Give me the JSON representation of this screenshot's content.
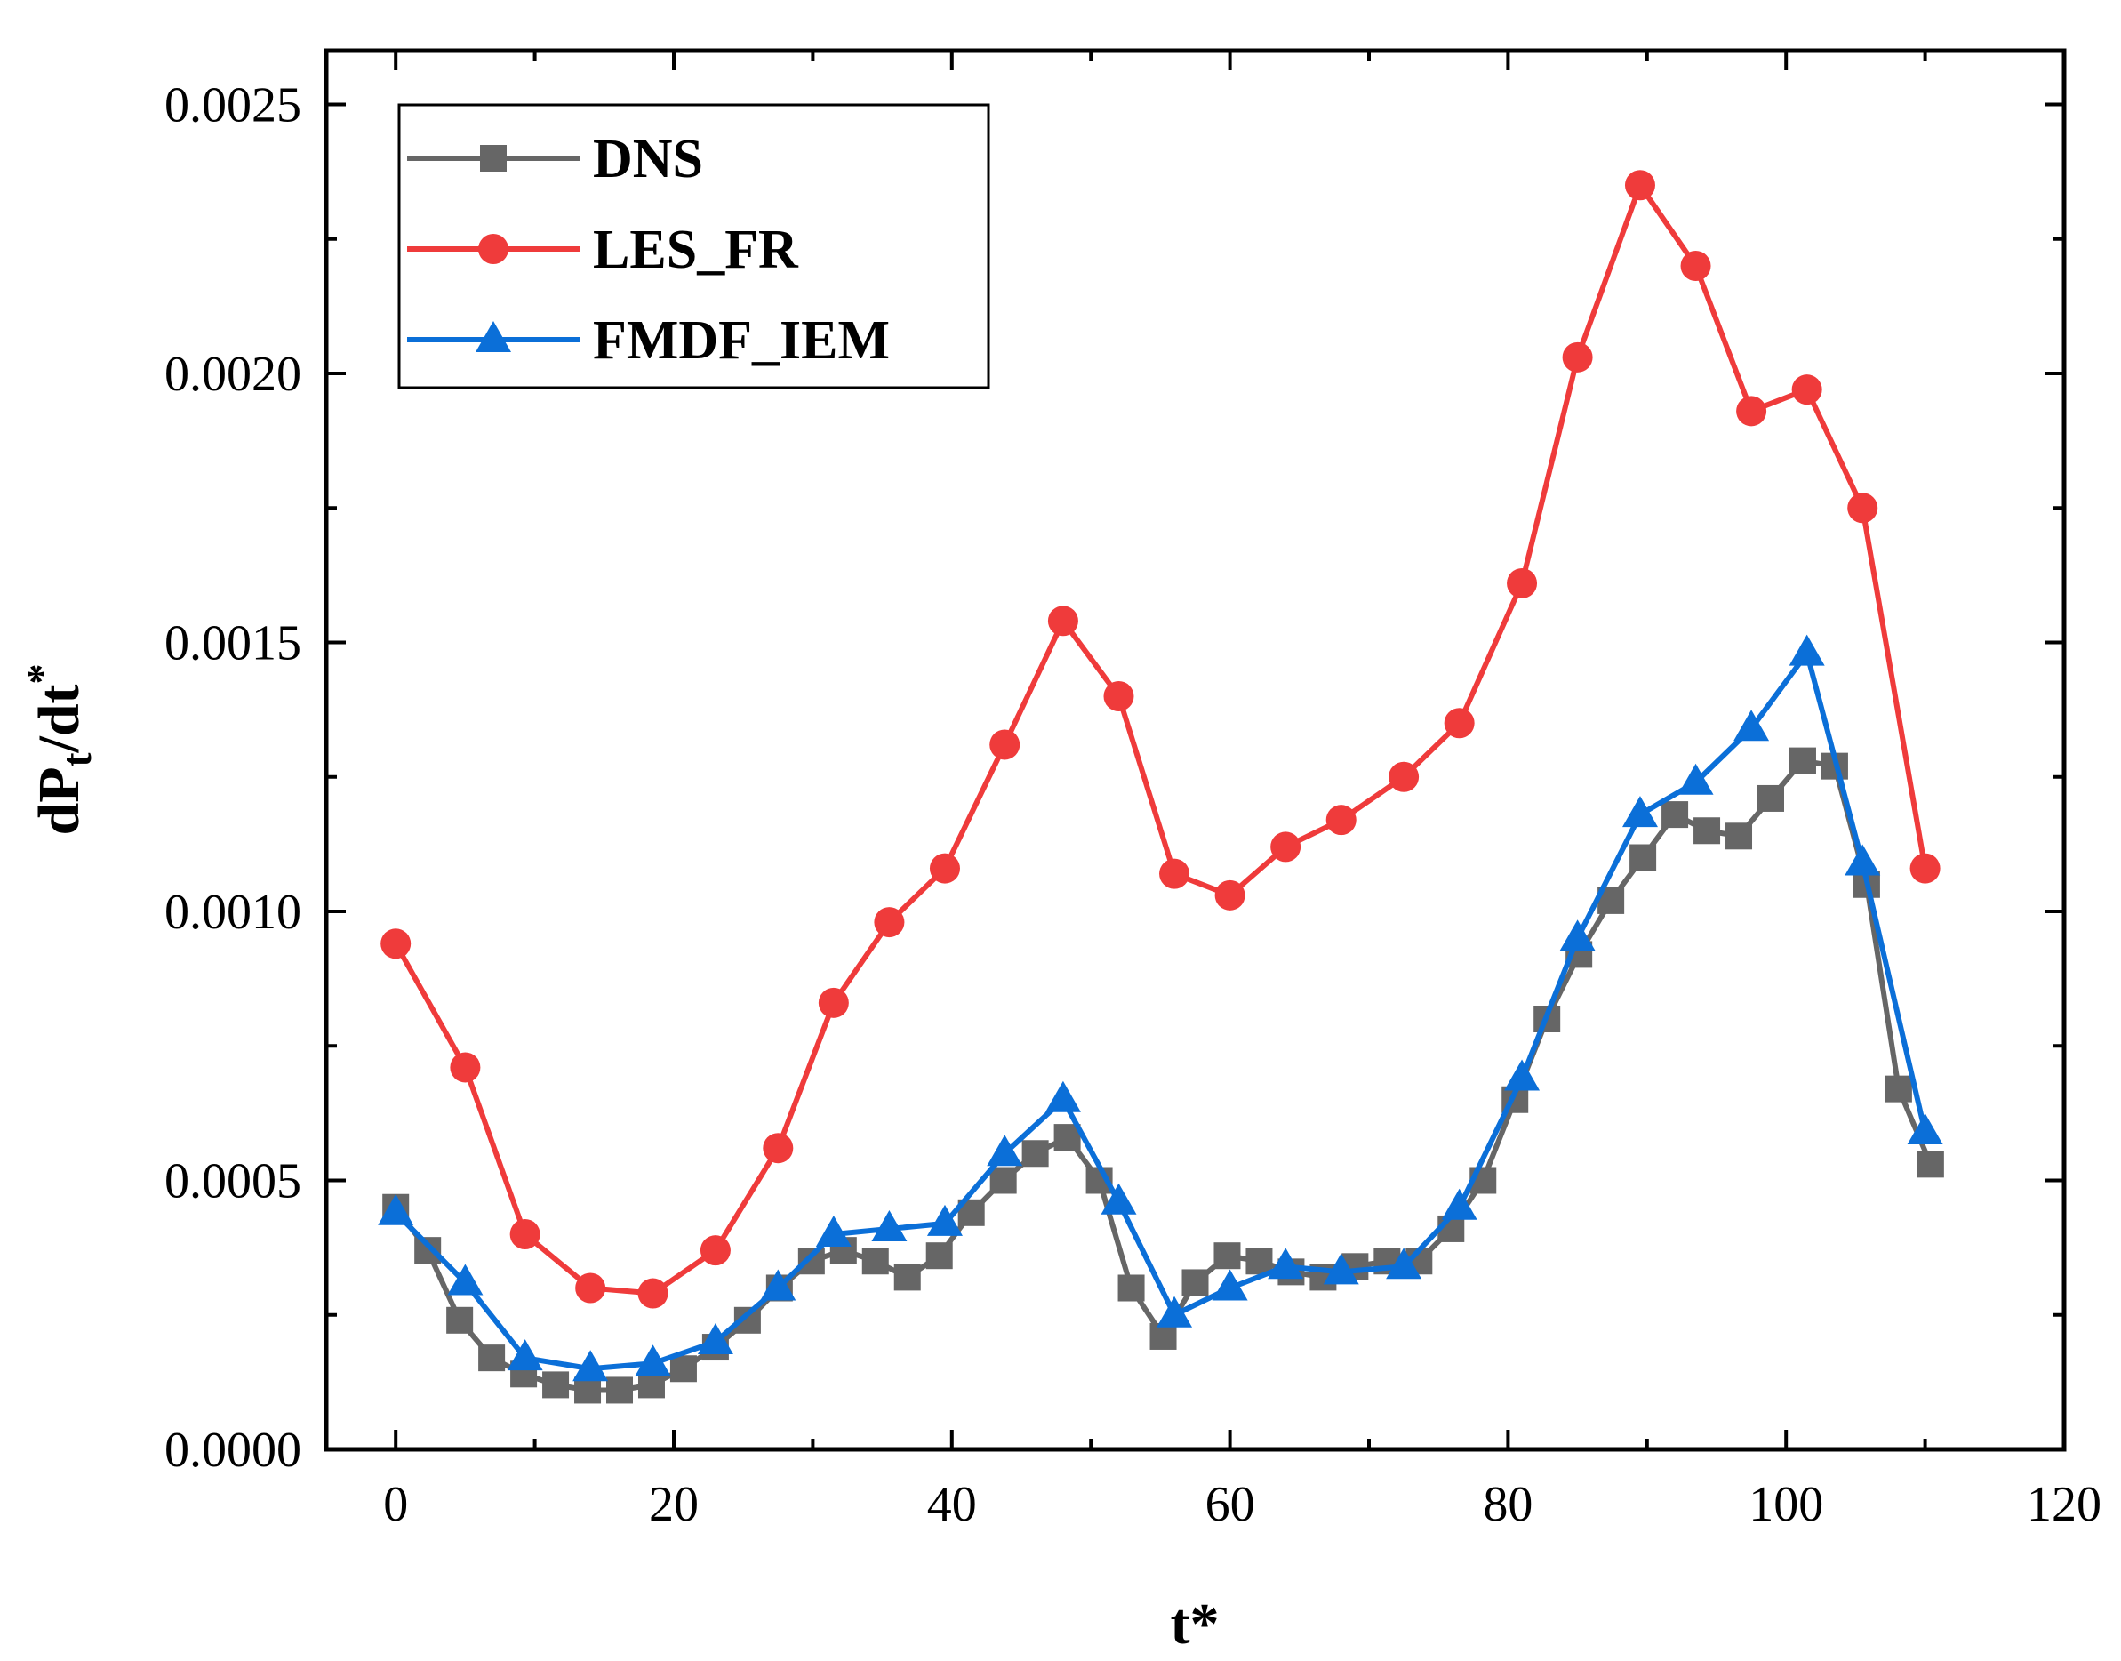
{
  "chart_data": {
    "type": "line",
    "title": "",
    "xlabel": "t*",
    "ylabel": {
      "main": "dP",
      "sub": "t",
      "mid": "/dt",
      "sup": "*"
    },
    "xlim": [
      -5,
      120
    ],
    "ylim": [
      0,
      0.0026
    ],
    "x_ticks": [
      0,
      20,
      40,
      60,
      80,
      100,
      120
    ],
    "x_tick_labels": [
      "0",
      "20",
      "40",
      "60",
      "80",
      "100",
      "120"
    ],
    "y_ticks": [
      0,
      0.0005,
      0.001,
      0.0015,
      0.002,
      0.0025
    ],
    "y_tick_labels": [
      "0.0000",
      "0.0005",
      "0.0010",
      "0.0015",
      "0.0020",
      "0.0025"
    ],
    "legend_position": "top-left",
    "series": [
      {
        "name": "DNS",
        "color": "#666666",
        "marker": "square",
        "x": [
          0,
          2.3,
          4.6,
          6.9,
          9.2,
          11.5,
          13.8,
          16.1,
          18.4,
          20.7,
          23,
          25.3,
          27.6,
          29.9,
          32.2,
          34.5,
          36.8,
          39.1,
          41.4,
          43.7,
          46,
          48.3,
          50.6,
          52.9,
          55.2,
          57.5,
          59.8,
          62.1,
          64.4,
          66.7,
          69,
          71.3,
          73.6,
          75.9,
          78.2,
          80.5,
          82.8,
          85.1,
          87.4,
          89.7,
          92,
          94.3,
          96.6,
          98.9,
          101.2,
          103.5,
          105.8,
          108.1,
          110.4
        ],
        "y": [
          0.00045,
          0.00037,
          0.00024,
          0.00017,
          0.00014,
          0.00012,
          0.00011,
          0.00011,
          0.00012,
          0.00015,
          0.00019,
          0.00024,
          0.0003,
          0.00035,
          0.00037,
          0.00035,
          0.00032,
          0.00036,
          0.00044,
          0.0005,
          0.00055,
          0.00058,
          0.0005,
          0.0003,
          0.00021,
          0.00031,
          0.00036,
          0.00035,
          0.00033,
          0.00032,
          0.00034,
          0.00035,
          0.00035,
          0.00041,
          0.0005,
          0.00065,
          0.0008,
          0.00092,
          0.00102,
          0.0011,
          0.00118,
          0.00115,
          0.00114,
          0.00121,
          0.00128,
          0.00127,
          0.00105,
          0.00067,
          0.00053
        ]
      },
      {
        "name": "LES_FR",
        "color": "#ef3b3b",
        "marker": "circle",
        "x": [
          0,
          5,
          9.3,
          14,
          18.5,
          23,
          27.5,
          31.5,
          35.5,
          39.5,
          43.8,
          48,
          52,
          56,
          60,
          64,
          68,
          72.5,
          76.5,
          81,
          85,
          89.5,
          93.5,
          97.5,
          101.5,
          105.5,
          110
        ],
        "y": [
          0.00094,
          0.00071,
          0.0004,
          0.0003,
          0.00029,
          0.00037,
          0.00056,
          0.00083,
          0.00098,
          0.00108,
          0.00131,
          0.00154,
          0.0014,
          0.00107,
          0.00103,
          0.00112,
          0.00117,
          0.00125,
          0.00135,
          0.00161,
          0.00203,
          0.00235,
          0.0022,
          0.00193,
          0.00197,
          0.00175,
          0.00108
        ]
      },
      {
        "name": "FMDF_IEM",
        "color": "#0b6fd8",
        "marker": "triangle",
        "x": [
          0,
          5,
          9.3,
          14,
          18.5,
          23,
          27.5,
          31.5,
          35.5,
          39.5,
          43.8,
          48,
          52,
          56,
          60,
          64,
          68,
          72.5,
          76.5,
          81,
          85,
          89.5,
          93.5,
          97.5,
          101.5,
          105.5,
          110
        ],
        "y": [
          0.00044,
          0.00031,
          0.00017,
          0.00015,
          0.00016,
          0.0002,
          0.0003,
          0.0004,
          0.00041,
          0.00042,
          0.00055,
          0.00065,
          0.00046,
          0.00025,
          0.0003,
          0.00034,
          0.00033,
          0.00034,
          0.00045,
          0.00069,
          0.00095,
          0.00118,
          0.00124,
          0.00134,
          0.00148,
          0.00109,
          0.00059
        ]
      }
    ]
  }
}
